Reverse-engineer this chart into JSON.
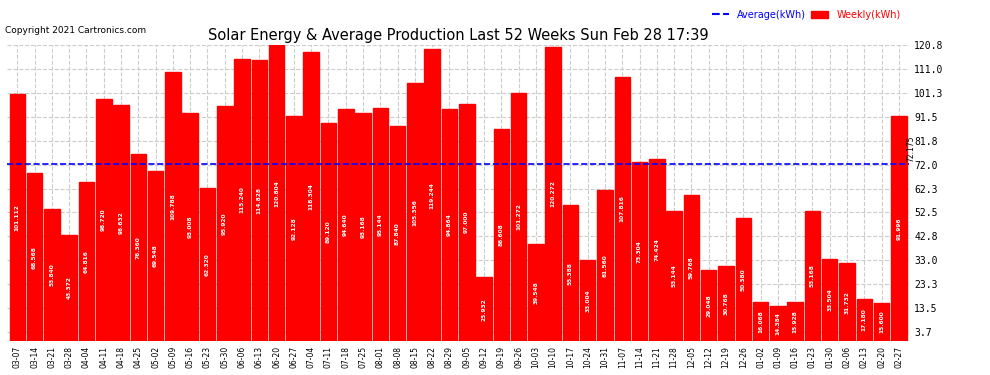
{
  "title": "Solar Energy & Average Production Last 52 Weeks Sun Feb 28 17:39",
  "copyright": "Copyright 2021 Cartronics.com",
  "average_value": 72.175,
  "bar_color": "#FF0000",
  "average_line_color": "#0000FF",
  "background_color": "#FFFFFF",
  "plot_background_color": "#FFFFFF",
  "grid_color": "#CCCCCC",
  "yticks": [
    3.7,
    13.5,
    23.3,
    33.0,
    42.8,
    52.5,
    62.3,
    72.0,
    81.8,
    91.5,
    101.3,
    111.0,
    120.8
  ],
  "legend_avg_color": "#0000FF",
  "legend_weekly_color": "#FF0000",
  "categories": [
    "03-07",
    "03-14",
    "03-21",
    "03-28",
    "04-04",
    "04-11",
    "04-18",
    "04-25",
    "05-02",
    "05-09",
    "05-16",
    "05-23",
    "05-30",
    "06-06",
    "06-13",
    "06-20",
    "06-27",
    "07-04",
    "07-11",
    "07-18",
    "07-25",
    "08-01",
    "08-08",
    "08-15",
    "08-22",
    "08-29",
    "09-05",
    "09-12",
    "09-19",
    "09-26",
    "10-03",
    "10-10",
    "10-17",
    "10-24",
    "10-31",
    "11-07",
    "11-14",
    "11-21",
    "11-28",
    "12-05",
    "12-12",
    "12-19",
    "12-26",
    "01-02",
    "01-09",
    "01-16",
    "01-23",
    "01-30",
    "02-06",
    "02-13",
    "02-20",
    "02-27"
  ],
  "values": [
    101.112,
    68.568,
    53.84,
    43.372,
    64.816,
    98.72,
    96.632,
    76.36,
    69.548,
    109.788,
    93.008,
    62.32,
    95.92,
    115.24,
    114.828,
    120.804,
    92.128,
    118.304,
    89.12,
    94.64,
    93.168,
    95.144,
    87.84,
    105.356,
    119.244,
    94.864,
    97.0,
    25.932,
    86.608,
    101.272,
    39.548,
    120.272,
    55.388,
    33.004,
    61.56,
    107.816,
    73.304,
    74.424,
    53.144,
    59.768,
    29.048,
    30.768,
    50.38,
    16.068,
    14.384,
    15.928,
    53.168,
    33.504,
    31.732,
    17.18,
    15.6,
    91.996
  ]
}
